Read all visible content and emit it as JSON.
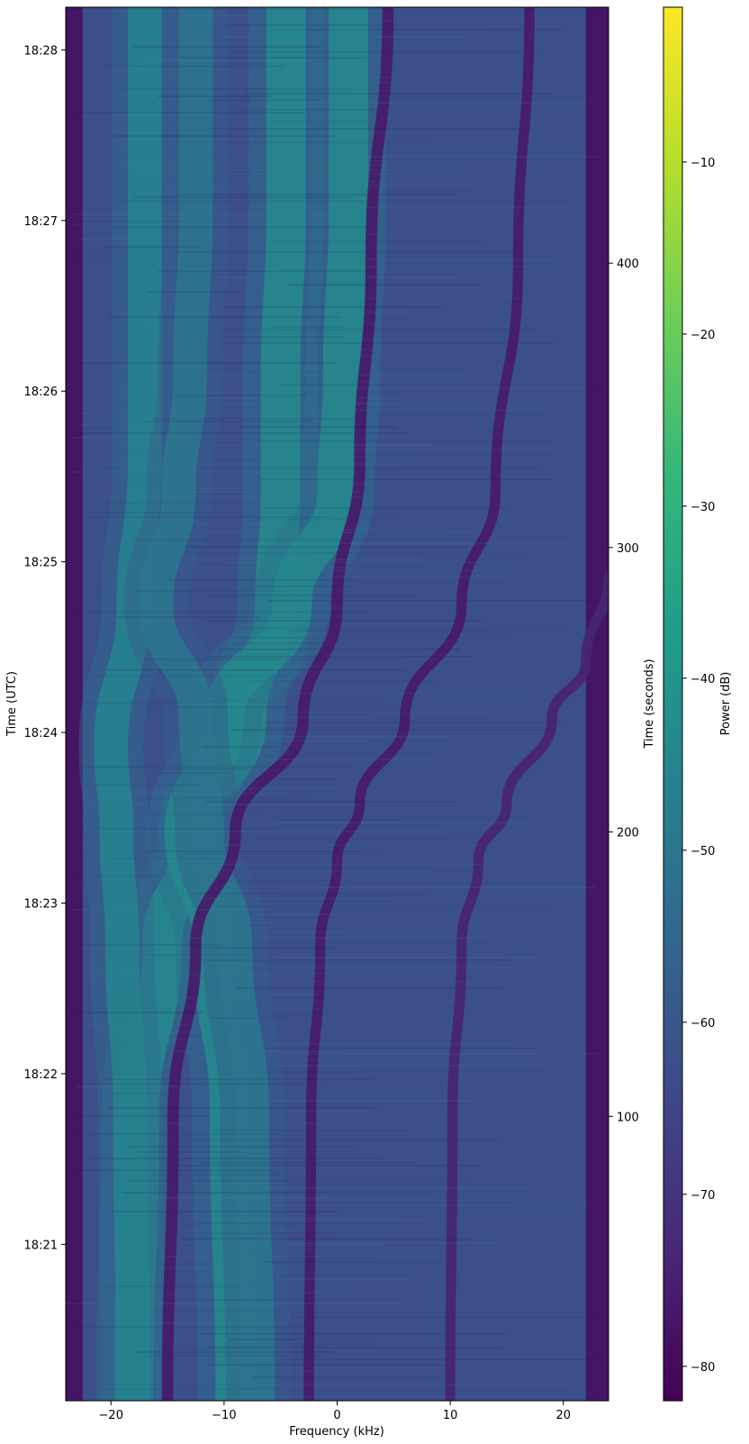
{
  "chart_data": {
    "type": "heatmap",
    "title": "",
    "xlabel": "Frequency (kHz)",
    "ylabel_left": "Time (UTC)",
    "ylabel_right": "Time (seconds)",
    "colorbar_label": "Power (dB)",
    "xlim": [
      -24,
      24
    ],
    "x_ticks": [
      -20,
      -10,
      0,
      10,
      20
    ],
    "x_tick_labels": [
      "−20",
      "−10",
      "0",
      "10",
      "20"
    ],
    "time_seconds_lim": [
      0,
      490
    ],
    "left_ticks": [
      {
        "label": "18:21",
        "seconds": 55
      },
      {
        "label": "18:22",
        "seconds": 115
      },
      {
        "label": "18:23",
        "seconds": 175
      },
      {
        "label": "18:24",
        "seconds": 235
      },
      {
        "label": "18:25",
        "seconds": 295
      },
      {
        "label": "18:26",
        "seconds": 355
      },
      {
        "label": "18:27",
        "seconds": 415
      },
      {
        "label": "18:28",
        "seconds": 475
      }
    ],
    "right_ticks": [
      100,
      200,
      300,
      400
    ],
    "colorbar_lim": [
      -82,
      -1
    ],
    "colorbar_ticks": [
      -80,
      -70,
      -60,
      -50,
      -40,
      -30,
      -20,
      -10
    ],
    "colorbar_tick_labels": [
      "−80",
      "−70",
      "−60",
      "−50",
      "−40",
      "−30",
      "−20",
      "−10"
    ],
    "colormap": [
      "#440154",
      "#482878",
      "#3e4989",
      "#31688e",
      "#26828e",
      "#1f9e89",
      "#35b779",
      "#6ece58",
      "#b5de2b",
      "#fde725"
    ],
    "background_power_db": -62,
    "edge_power_db": -80,
    "doppler_tracks": [
      {
        "kind": "bright",
        "power_db": -44,
        "width_khz": 3.5,
        "freq_khz": [
          [
            0,
            -18
          ],
          [
            100,
            -17.5
          ],
          [
            160,
            -15.5
          ],
          [
            200,
            -12.5
          ],
          [
            240,
            -8
          ],
          [
            280,
            -5.5
          ],
          [
            320,
            -5
          ],
          [
            360,
            -5
          ],
          [
            420,
            -4.5
          ],
          [
            490,
            -4.5
          ]
        ]
      },
      {
        "kind": "bright",
        "power_db": -46,
        "width_khz": 3,
        "freq_khz": [
          [
            0,
            -18
          ],
          [
            100,
            -18.3
          ],
          [
            160,
            -19
          ],
          [
            200,
            -19.5
          ],
          [
            230,
            -20
          ],
          [
            280,
            -18
          ],
          [
            330,
            -17
          ],
          [
            400,
            -17
          ],
          [
            490,
            -17
          ]
        ]
      },
      {
        "kind": "bright",
        "power_db": -44,
        "width_khz": 3.5,
        "freq_khz": [
          [
            0,
            -9
          ],
          [
            100,
            -9.5
          ],
          [
            160,
            -11
          ],
          [
            200,
            -13.5
          ],
          [
            240,
            -10
          ],
          [
            280,
            -4
          ],
          [
            320,
            0
          ],
          [
            360,
            0.5
          ],
          [
            420,
            1
          ],
          [
            490,
            1
          ]
        ]
      },
      {
        "kind": "bright",
        "power_db": -50,
        "width_khz": 3,
        "freq_khz": [
          [
            0,
            -7
          ],
          [
            100,
            -7.5
          ],
          [
            160,
            -9
          ],
          [
            200,
            -11.5
          ],
          [
            240,
            -12.5
          ],
          [
            280,
            -16
          ],
          [
            320,
            -14
          ],
          [
            360,
            -13
          ],
          [
            420,
            -12.5
          ],
          [
            490,
            -12.5
          ]
        ]
      },
      {
        "kind": "dark",
        "power_db": -76,
        "width_khz": 1.0,
        "freq_khz": [
          [
            0,
            -15
          ],
          [
            100,
            -14.5
          ],
          [
            160,
            -12.5
          ],
          [
            200,
            -9
          ],
          [
            240,
            -3
          ],
          [
            280,
            0
          ],
          [
            330,
            2
          ],
          [
            400,
            3
          ],
          [
            490,
            4.5
          ]
        ]
      },
      {
        "kind": "dark",
        "power_db": -76,
        "width_khz": 0.9,
        "freq_khz": [
          [
            0,
            -2.5
          ],
          [
            100,
            -2.3
          ],
          [
            160,
            -1.5
          ],
          [
            190,
            0
          ],
          [
            210,
            2
          ],
          [
            240,
            6
          ],
          [
            280,
            11
          ],
          [
            320,
            14
          ],
          [
            400,
            16
          ],
          [
            490,
            17
          ]
        ]
      },
      {
        "kind": "dark",
        "power_db": -74,
        "width_khz": 0.9,
        "freq_khz": [
          [
            0,
            10
          ],
          [
            100,
            10.2
          ],
          [
            160,
            11
          ],
          [
            190,
            12.5
          ],
          [
            210,
            15
          ],
          [
            240,
            19
          ],
          [
            260,
            22
          ],
          [
            290,
            24
          ]
        ]
      }
    ]
  }
}
